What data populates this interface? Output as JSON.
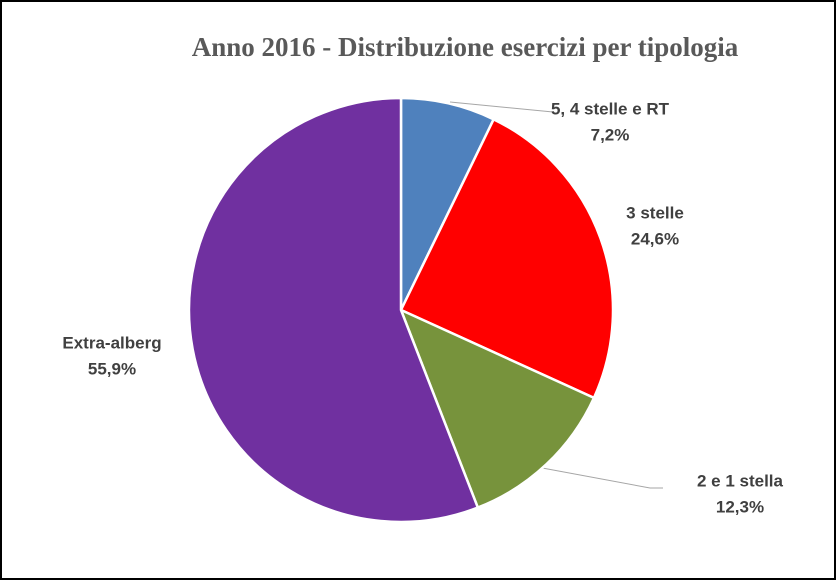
{
  "chart_data": {
    "type": "pie",
    "title": "Anno 2016 - Distribuzione esercizi per tipologia",
    "categories": [
      "5, 4 stelle e RT",
      "3 stelle",
      "2 e 1 stella",
      "Extra-alberg"
    ],
    "values": [
      7.2,
      24.6,
      12.3,
      55.9
    ],
    "value_labels": [
      "7,2%",
      "24,6%",
      "12,3%",
      "55,9%"
    ],
    "colors": [
      "#4f81bd",
      "#ff0000",
      "#77933c",
      "#7030a0"
    ]
  }
}
